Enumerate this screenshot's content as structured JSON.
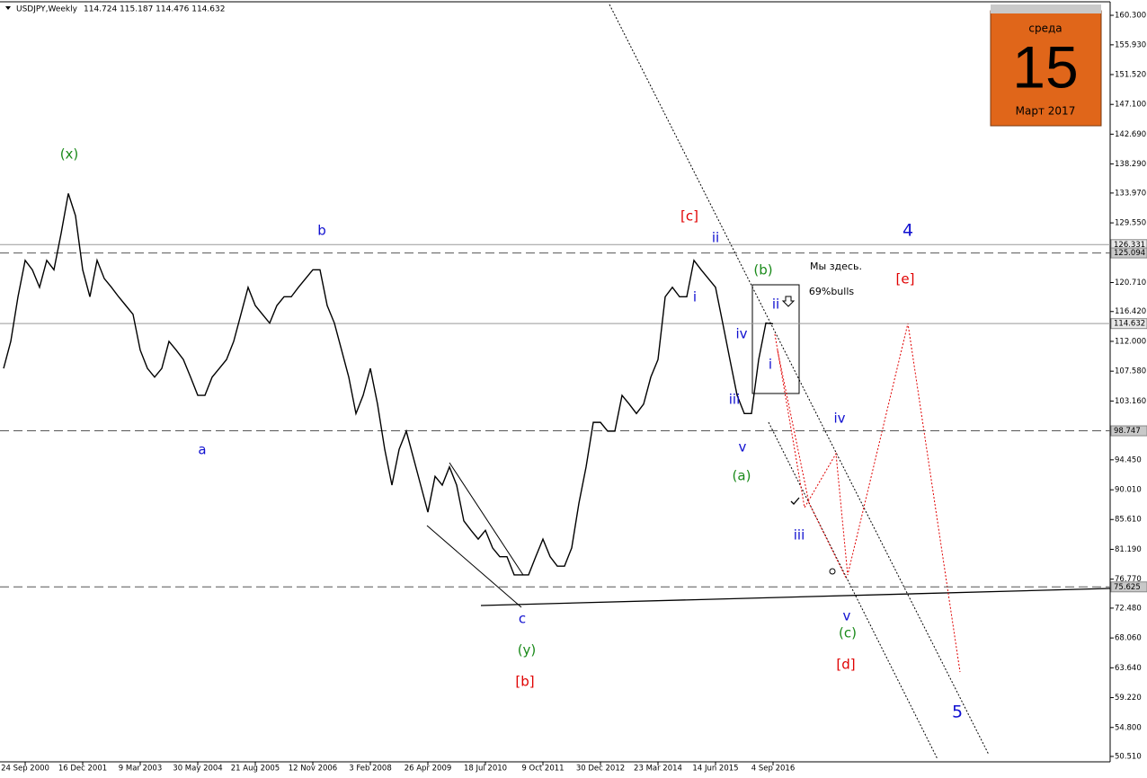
{
  "chart_data": {
    "type": "line",
    "title": "USDJPY,Weekly",
    "quote": "114.724 115.187 114.476 114.632",
    "categories": [
      null,
      null,
      null,
      "24 Sep 2000",
      null,
      null,
      null,
      null,
      null,
      null,
      null,
      "16 Dec 2001",
      null,
      null,
      null,
      null,
      null,
      null,
      null,
      "9 Mar 2003",
      null,
      null,
      null,
      null,
      null,
      null,
      null,
      "30 May 2004",
      null,
      null,
      null,
      null,
      null,
      null,
      null,
      "21 Aug 2005",
      null,
      null,
      null,
      null,
      null,
      null,
      null,
      "12 Nov 2006",
      null,
      null,
      null,
      null,
      null,
      null,
      null,
      "3 Feb 2008",
      null,
      null,
      null,
      null,
      null,
      null,
      null,
      "26 Apr 2009",
      null,
      null,
      null,
      null,
      null,
      null,
      null,
      "18 Jul 2010",
      null,
      null,
      null,
      null,
      null,
      null,
      null,
      "9 Oct 2011",
      null,
      null,
      null,
      null,
      null,
      null,
      null,
      "30 Dec 2012",
      null,
      null,
      null,
      null,
      null,
      null,
      null,
      "23 Mar 2014",
      null,
      null,
      null,
      null,
      null,
      null,
      null,
      "14 Jun 2015",
      null,
      null,
      null,
      null,
      null,
      null,
      null,
      "4 Sep 2016"
    ],
    "series": [
      {
        "name": "USDJPY",
        "color": "#000000",
        "values": [
          108.0,
          112.0,
          118.6,
          124.0,
          122.6,
          120.0,
          124.0,
          122.6,
          128.0,
          133.9,
          130.6,
          122.6,
          118.6,
          124.0,
          121.3,
          120.0,
          118.6,
          117.3,
          116.0,
          110.7,
          108.0,
          106.7,
          108.0,
          112.0,
          110.7,
          109.3,
          106.7,
          104.0,
          104.0,
          106.7,
          108.0,
          109.3,
          112.0,
          116.0,
          120.0,
          117.3,
          116.0,
          114.7,
          117.3,
          118.6,
          118.6,
          120.0,
          121.3,
          122.6,
          122.6,
          117.3,
          114.7,
          110.7,
          106.7,
          101.3,
          104.0,
          108.0,
          102.7,
          96.0,
          90.7,
          96.0,
          98.7,
          94.7,
          90.7,
          86.7,
          92.0,
          90.7,
          93.4,
          90.7,
          85.4,
          84.0,
          82.7,
          84.0,
          81.4,
          80.1,
          80.1,
          77.4,
          77.4,
          77.4,
          80.1,
          82.7,
          80.1,
          78.7,
          78.7,
          81.4,
          88.0,
          93.4,
          100.0,
          100.0,
          98.7,
          98.7,
          104.0,
          102.7,
          101.3,
          102.7,
          106.7,
          109.3,
          118.6,
          120.0,
          118.6,
          118.6,
          124.0,
          122.6,
          121.3,
          120.0,
          114.7,
          109.3,
          104.0,
          101.3,
          101.3,
          109.3,
          114.7,
          114.6
        ]
      }
    ],
    "ylim": [
      49.71,
      162.3
    ],
    "yticks": [
      {
        "value": 160.3,
        "label": "160.300"
      },
      {
        "value": 155.93,
        "label": "155.930"
      },
      {
        "value": 151.52,
        "label": "151.520"
      },
      {
        "value": 147.1,
        "label": "147.100"
      },
      {
        "value": 142.69,
        "label": "142.690"
      },
      {
        "value": 138.29,
        "label": "138.290"
      },
      {
        "value": 133.97,
        "label": "133.970"
      },
      {
        "value": 129.55,
        "label": "129.550"
      },
      {
        "value": 120.71,
        "label": "120.710"
      },
      {
        "value": 116.42,
        "label": "116.420"
      },
      {
        "value": 112.0,
        "label": "112.000"
      },
      {
        "value": 107.58,
        "label": "107.580"
      },
      {
        "value": 103.16,
        "label": "103.160"
      },
      {
        "value": 94.45,
        "label": "94.450"
      },
      {
        "value": 90.01,
        "label": "90.010"
      },
      {
        "value": 85.61,
        "label": "85.610"
      },
      {
        "value": 81.19,
        "label": "81.190"
      },
      {
        "value": 76.77,
        "label": "76.770"
      },
      {
        "value": 72.48,
        "label": "72.480"
      },
      {
        "value": 68.06,
        "label": "68.060"
      },
      {
        "value": 63.64,
        "label": "63.640"
      },
      {
        "value": 59.22,
        "label": "59.220"
      },
      {
        "value": 54.8,
        "label": "54.800"
      },
      {
        "value": 50.51,
        "label": "50.510"
      }
    ],
    "levels": [
      {
        "value": 126.331,
        "style": "solid"
      },
      {
        "value": 125.094,
        "style": "dashed"
      },
      {
        "value": 114.632,
        "style": "solid"
      },
      {
        "value": 98.747,
        "style": "dashed"
      },
      {
        "value": 75.625,
        "style": "dashed"
      }
    ],
    "grid": false,
    "annotations": [
      {
        "text": "(x)",
        "color": "#1a8a1a"
      },
      {
        "text": "b",
        "color": "#1010d0"
      },
      {
        "text": "a",
        "color": "#1010d0"
      },
      {
        "text": "c",
        "color": "#1010d0"
      },
      {
        "text": "(y)",
        "color": "#1a8a1a"
      },
      {
        "text": "[b]",
        "color": "#e00000"
      },
      {
        "text": "[c]",
        "color": "#e00000"
      },
      {
        "text": "ii",
        "color": "#1010d0"
      },
      {
        "text": "i",
        "color": "#1010d0"
      },
      {
        "text": "(b)",
        "color": "#1a8a1a"
      },
      {
        "text": "iv",
        "color": "#1010d0"
      },
      {
        "text": "iii",
        "color": "#1010d0"
      },
      {
        "text": "v",
        "color": "#1010d0"
      },
      {
        "text": "(a)",
        "color": "#1a8a1a"
      },
      {
        "text": "ii",
        "color": "#1010d0"
      },
      {
        "text": "i",
        "color": "#1010d0"
      },
      {
        "text": "iv",
        "color": "#1010d0"
      },
      {
        "text": "iii",
        "color": "#1010d0"
      },
      {
        "text": "v",
        "color": "#1010d0"
      },
      {
        "text": "(c)",
        "color": "#1a8a1a"
      },
      {
        "text": "[d]",
        "color": "#e00000"
      },
      {
        "text": "4",
        "color": "#1010d0"
      },
      {
        "text": "[e]",
        "color": "#e00000"
      },
      {
        "text": "5",
        "color": "#1010d0"
      },
      {
        "text": "Мы здесь.",
        "color": "#000000"
      },
      {
        "text": "69%bulls",
        "color": "#000000"
      }
    ]
  },
  "calendar": {
    "weekday": "среда",
    "day": "15",
    "month": "Март 2017"
  }
}
